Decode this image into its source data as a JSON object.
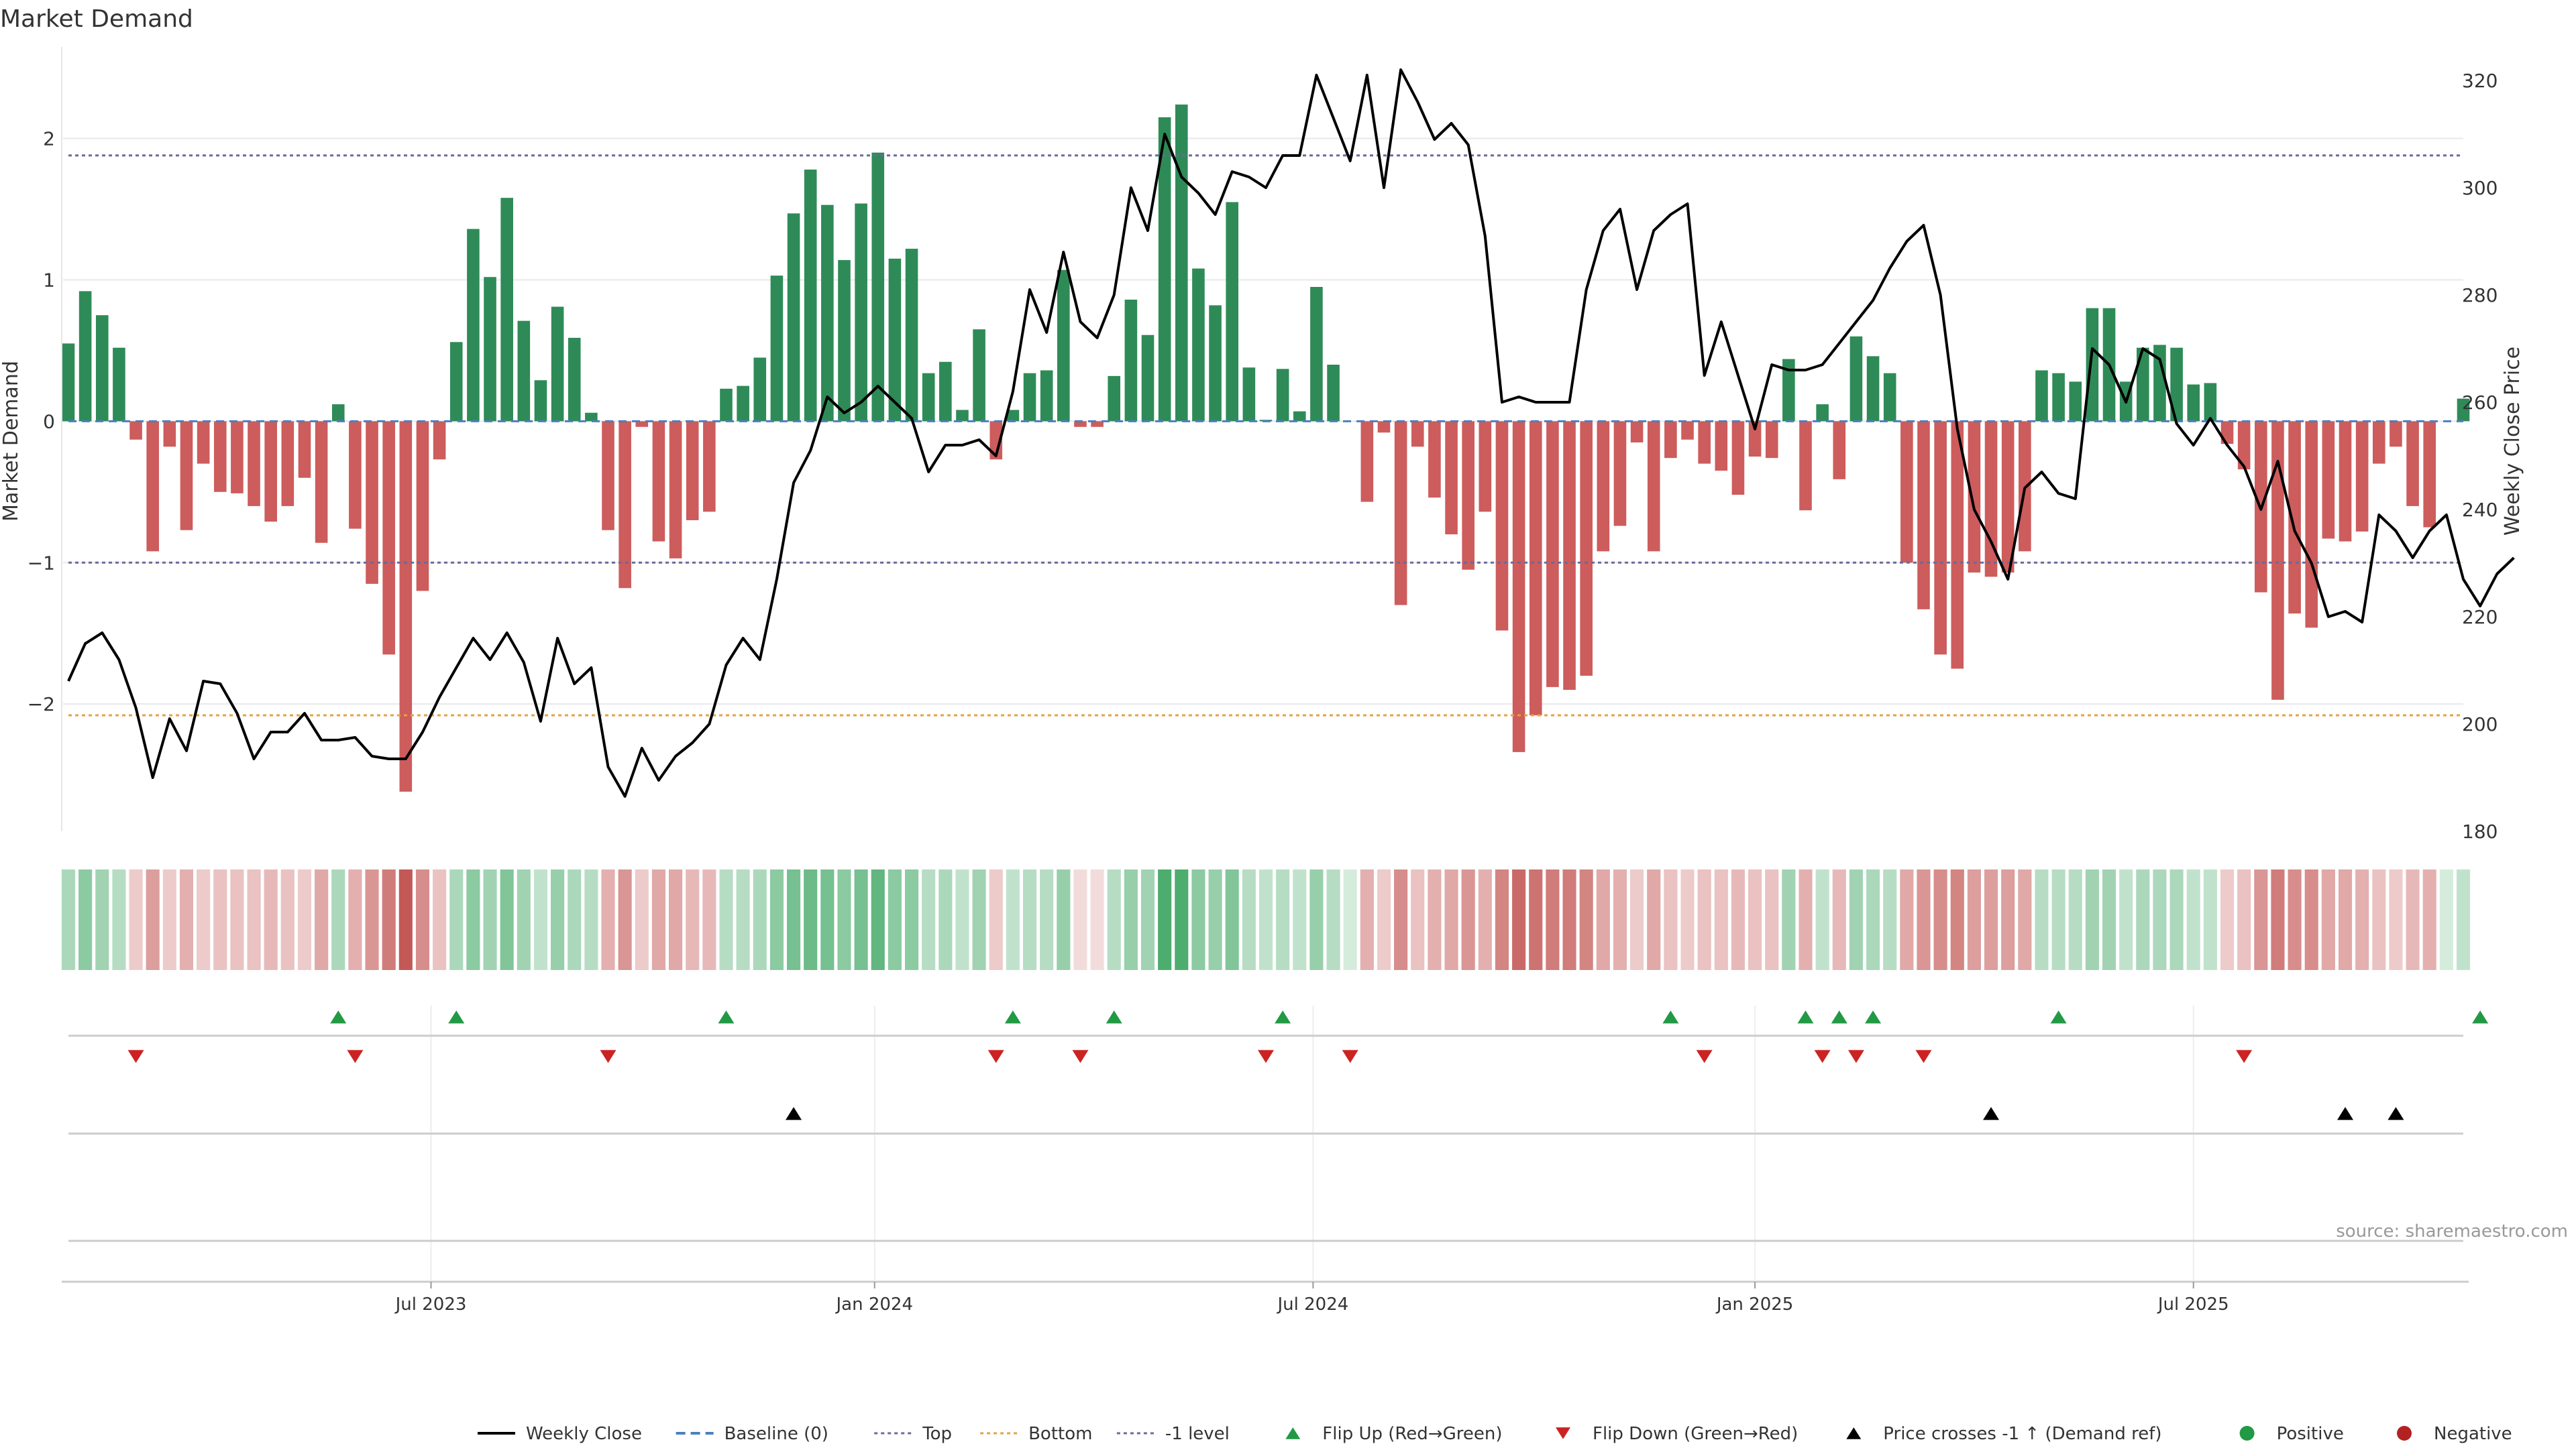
{
  "page": {
    "title": "Market Demand",
    "source_note": "source: sharemaestro.com"
  },
  "chart_data": {
    "type": "bar",
    "title": "Market Demand",
    "ylabel_left": "Market Demand",
    "ylabel_right": "Weekly Close Price",
    "ylim_left": [
      -2.9,
      2.6
    ],
    "ylim_right": [
      180,
      325
    ],
    "yticks_left": [
      "2",
      "1",
      "0",
      "−1",
      "−2"
    ],
    "yticks_right": [
      "320",
      "300",
      "280",
      "260",
      "240",
      "220",
      "200",
      "180"
    ],
    "x_tick_labels": [
      "Jul 2023",
      "Jan 2024",
      "Jul 2024",
      "Jan 2025",
      "Jul 2025"
    ],
    "x_tick_weeks": [
      21.5,
      47.8,
      73.8,
      100,
      126
    ],
    "reference_lines": {
      "top": 1.88,
      "bottom": -2.08,
      "minus_one": -1.0
    },
    "colors": {
      "positive": "#2e8b57",
      "negative": "#cd5c5c",
      "price": "#000000",
      "top": "#6a6a9a",
      "bottom": "#e8a040",
      "flip_up": "#229944",
      "flip_down": "#cc2222"
    },
    "demand": [
      0.55,
      0.92,
      0.75,
      0.52,
      -0.13,
      -0.92,
      -0.18,
      -0.77,
      -0.3,
      -0.5,
      -0.51,
      -0.6,
      -0.71,
      -0.6,
      -0.4,
      -0.86,
      0.12,
      -0.76,
      -1.15,
      -1.65,
      -2.62,
      -1.2,
      -0.27,
      0.56,
      1.36,
      1.02,
      1.58,
      0.71,
      0.29,
      0.81,
      0.59,
      0.06,
      -0.77,
      -1.18,
      -0.04,
      -0.85,
      -0.97,
      -0.7,
      -0.64,
      0.23,
      0.25,
      0.45,
      1.03,
      1.47,
      1.78,
      1.53,
      1.14,
      1.54,
      1.9,
      1.15,
      1.22,
      0.34,
      0.42,
      0.08,
      0.65,
      -0.27,
      0.08,
      0.34,
      0.36,
      1.07,
      -0.04,
      -0.04,
      0.32,
      0.86,
      0.61,
      2.15,
      2.24,
      1.08,
      0.82,
      1.55,
      0.38,
      0.01,
      0.37,
      0.07,
      0.95,
      0.4,
      0.0,
      -0.57,
      -0.08,
      -1.3,
      -0.18,
      -0.54,
      -0.8,
      -1.05,
      -0.64,
      -1.48,
      -2.34,
      -2.08,
      -1.88,
      -1.9,
      -1.8,
      -0.92,
      -0.74,
      -0.15,
      -0.92,
      -0.26,
      -0.13,
      -0.3,
      -0.35,
      -0.52,
      -0.25,
      -0.26,
      0.44,
      -0.63,
      0.12,
      -0.41,
      0.6,
      0.46,
      0.34,
      -1.0,
      -1.33,
      -1.65,
      -1.75,
      -1.07,
      -1.1,
      -1.07,
      -0.92,
      0.36,
      0.34,
      0.28,
      0.8,
      0.8,
      0.28,
      0.52,
      0.54,
      0.52,
      0.26,
      0.27,
      -0.16,
      -0.34,
      -1.21,
      -1.97,
      -1.36,
      -1.46,
      -0.83,
      -0.85,
      -0.78,
      -0.3,
      -0.18,
      -0.6,
      -0.75,
      0.0,
      0.16
    ],
    "price": [
      208,
      215,
      217,
      212,
      203,
      190,
      201,
      195,
      208,
      207.5,
      202,
      193.5,
      198.5,
      198.5,
      202,
      197,
      197,
      197.5,
      194,
      193.5,
      193.5,
      198.5,
      205,
      210.5,
      216,
      212,
      217,
      211.5,
      200.5,
      216,
      207.5,
      210.5,
      192,
      186.5,
      195.5,
      189.5,
      194,
      196.5,
      200,
      211,
      216,
      212,
      227,
      245,
      251,
      261,
      258,
      260,
      263,
      260,
      257,
      247,
      252,
      252,
      253,
      250,
      262,
      281,
      273,
      288,
      275,
      272,
      280,
      300,
      292,
      310,
      302,
      299,
      295,
      303,
      302,
      300,
      306,
      306,
      321,
      313,
      305,
      321,
      300,
      322,
      316,
      309,
      312,
      308,
      291,
      260,
      261,
      260,
      260,
      260,
      281,
      292,
      296,
      281,
      292,
      295,
      297,
      265,
      275,
      265,
      255,
      267,
      266,
      266,
      267,
      271,
      275,
      279,
      285,
      290,
      293,
      280,
      255,
      240,
      234,
      227,
      244,
      247,
      243,
      242,
      270,
      267,
      260,
      270,
      268,
      256,
      252,
      257,
      252,
      248,
      240,
      249,
      236,
      230,
      220,
      221,
      219,
      239,
      236,
      231,
      236,
      239,
      227,
      222,
      228,
      231
    ],
    "heat_levels": [
      0.4,
      0.55,
      0.45,
      0.35,
      0.3,
      0.55,
      0.3,
      0.45,
      0.3,
      0.35,
      0.35,
      0.35,
      0.4,
      0.35,
      0.3,
      0.5,
      0.4,
      0.45,
      0.6,
      0.75,
      0.95,
      0.65,
      0.35,
      0.4,
      0.55,
      0.45,
      0.6,
      0.45,
      0.3,
      0.5,
      0.4,
      0.35,
      0.45,
      0.6,
      0.3,
      0.5,
      0.5,
      0.4,
      0.4,
      0.35,
      0.35,
      0.4,
      0.55,
      0.65,
      0.7,
      0.65,
      0.55,
      0.65,
      0.75,
      0.55,
      0.55,
      0.35,
      0.4,
      0.3,
      0.45,
      0.3,
      0.3,
      0.35,
      0.35,
      0.5,
      0.2,
      0.2,
      0.35,
      0.5,
      0.45,
      0.85,
      0.85,
      0.55,
      0.5,
      0.6,
      0.35,
      0.3,
      0.35,
      0.3,
      0.5,
      0.35,
      0.2,
      0.45,
      0.3,
      0.65,
      0.35,
      0.45,
      0.5,
      0.6,
      0.45,
      0.7,
      0.85,
      0.8,
      0.75,
      0.75,
      0.7,
      0.5,
      0.45,
      0.3,
      0.5,
      0.35,
      0.3,
      0.35,
      0.35,
      0.4,
      0.35,
      0.35,
      0.45,
      0.45,
      0.3,
      0.4,
      0.45,
      0.4,
      0.35,
      0.5,
      0.6,
      0.65,
      0.7,
      0.55,
      0.55,
      0.55,
      0.5,
      0.35,
      0.35,
      0.35,
      0.45,
      0.45,
      0.3,
      0.4,
      0.4,
      0.4,
      0.3,
      0.3,
      0.3,
      0.35,
      0.6,
      0.75,
      0.65,
      0.65,
      0.5,
      0.5,
      0.45,
      0.35,
      0.3,
      0.4,
      0.45,
      0.2,
      0.3
    ],
    "flip_up_weeks": [
      16,
      23,
      39,
      56,
      62,
      72,
      95,
      103,
      105,
      107,
      118,
      143
    ],
    "flip_down_weeks": [
      4,
      17,
      32,
      55,
      60,
      71,
      76,
      97,
      104,
      106,
      110,
      129
    ],
    "price_cross_weeks": [
      43,
      114,
      135,
      138
    ],
    "legend": [
      {
        "label": "Weekly Close",
        "kind": "line",
        "color": "#000000"
      },
      {
        "label": "Baseline (0)",
        "kind": "dash",
        "color": "#4a7fc0"
      },
      {
        "label": "Top",
        "kind": "dot",
        "color": "#6a6a9a"
      },
      {
        "label": "Bottom",
        "kind": "dot",
        "color": "#e8a040"
      },
      {
        "label": "-1 level",
        "kind": "dot",
        "color": "#6a6a9a"
      },
      {
        "label": "Flip Up (Red→Green)",
        "kind": "tri-up",
        "color": "#229944"
      },
      {
        "label": "Flip Down (Green→Red)",
        "kind": "tri-down",
        "color": "#cc2222"
      },
      {
        "label": "Price crosses -1 ↑ (Demand ref)",
        "kind": "tri-up",
        "color": "#000000"
      },
      {
        "label": "Positive",
        "kind": "dot-big",
        "color": "#229944"
      },
      {
        "label": "Negative",
        "kind": "dot-big",
        "color": "#b22222"
      }
    ]
  }
}
